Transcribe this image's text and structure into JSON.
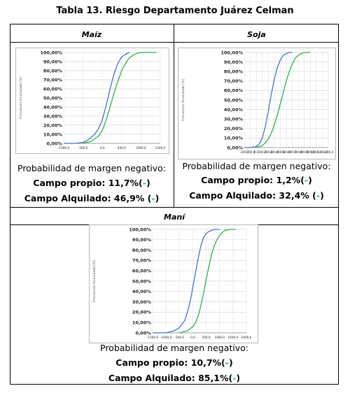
{
  "title": "Tabla 13. Riesgo Departamento Juárez Celman",
  "panels": {
    "maiz": {
      "header": "Maíz",
      "prob_label": "Probabilidad de margen negativo:",
      "propio": "Campo propio: 11,7%(",
      "alquilado": "Campo Alquilado: 46,9% (",
      "close": ")",
      "dash": "-"
    },
    "soja": {
      "header": "Soja",
      "prob_label": "Probabilidad de margen negativo:",
      "propio": "Campo propio: 1,2%(",
      "alquilado": "Campo Alquilado: 32,4% (",
      "close": ")",
      "dash": "-"
    },
    "mani": {
      "header": "Maní",
      "prob_label": "Probabilidad de margen negativo:",
      "propio": "Campo propio: 10,7%(",
      "alquilado": "Campo Alquilado: 85,1%(",
      "close": ")",
      "dash": "-"
    }
  },
  "chart_data": [
    {
      "type": "line",
      "name": "maiz",
      "ylabel": "Frecuencia Acumulada [%]",
      "yticks": [
        "0,00%",
        "10,00%",
        "20,00%",
        "30,00%",
        "40,00%",
        "50,00%",
        "60,00%",
        "70,00%",
        "80,00%",
        "90,00%",
        "100,00%"
      ],
      "xticks": [
        "-1000,0",
        "-500,0",
        "0,0",
        "500,0",
        "1000,0",
        "1500,0"
      ],
      "xlim": [
        -1000,
        1500
      ],
      "ylim": [
        0,
        100
      ],
      "series": [
        {
          "color": "#4472c4",
          "x": [
            -1000,
            -700,
            -500,
            -400,
            -300,
            -200,
            -100,
            0,
            100,
            200,
            300,
            400,
            500,
            600,
            700
          ],
          "y": [
            0,
            0,
            1,
            3,
            6,
            10,
            16,
            26,
            42,
            60,
            76,
            88,
            95,
            98,
            100
          ]
        },
        {
          "color": "#2db14a",
          "x": [
            -500,
            -300,
            -200,
            -100,
            0,
            100,
            200,
            300,
            400,
            500,
            600,
            700,
            800,
            900,
            1000,
            1100,
            1400
          ],
          "y": [
            0,
            2,
            5,
            8,
            14,
            26,
            40,
            55,
            68,
            80,
            88,
            94,
            97,
            99,
            100,
            100,
            100
          ]
        }
      ]
    },
    {
      "type": "line",
      "name": "soja",
      "ylabel": "Frecuencia Acumulada [%]",
      "yticks": [
        "0,00%",
        "10,00%",
        "20,00%",
        "30,00%",
        "40,00%",
        "50,00%",
        "60,00%",
        "70,00%",
        "80,00%",
        "90,00%",
        "100,00%"
      ],
      "xticks": [
        "-200,0",
        "-100,0",
        "0,0",
        "100,0",
        "200,0",
        "300,0",
        "400,0",
        "500,0",
        "600,0",
        "700,0",
        "800,0",
        "900,0",
        "1000,0",
        "1100,0",
        "1200,0"
      ],
      "xlim": [
        -200,
        1200
      ],
      "ylim": [
        0,
        100
      ],
      "series": [
        {
          "color": "#4472c4",
          "x": [
            -200,
            -100,
            0,
            50,
            100,
            150,
            200,
            250,
            300,
            350,
            400,
            450,
            500,
            550,
            600
          ],
          "y": [
            0,
            0,
            1,
            4,
            10,
            22,
            38,
            56,
            72,
            84,
            92,
            97,
            99,
            100,
            100
          ]
        },
        {
          "color": "#2db14a",
          "x": [
            0,
            100,
            150,
            200,
            250,
            300,
            350,
            400,
            450,
            500,
            550,
            600,
            650,
            700,
            750,
            800,
            900
          ],
          "y": [
            0,
            2,
            5,
            9,
            15,
            24,
            34,
            46,
            58,
            70,
            80,
            88,
            94,
            97,
            99,
            100,
            100
          ]
        }
      ]
    },
    {
      "type": "line",
      "name": "mani",
      "ylabel": "Frecuencia Acumulada [%]",
      "yticks": [
        "0,00%",
        "10,00%",
        "20,00%",
        "30,00%",
        "40,00%",
        "50,00%",
        "60,00%",
        "70,00%",
        "80,00%",
        "90,00%",
        "100,00%"
      ],
      "xticks": [
        "-1500,0",
        "-1000,0",
        "-500,0",
        "0,0",
        "500,0",
        "1000,0",
        "1500,0",
        "2000,0"
      ],
      "xlim": [
        -1500,
        2000
      ],
      "ylim": [
        0,
        100
      ],
      "series": [
        {
          "color": "#4472c4",
          "x": [
            -1500,
            -1000,
            -700,
            -500,
            -300,
            -200,
            -100,
            0,
            100,
            200,
            300,
            400,
            500,
            600,
            800,
            1000
          ],
          "y": [
            0,
            0,
            2,
            5,
            12,
            20,
            30,
            44,
            58,
            72,
            84,
            92,
            96,
            98,
            100,
            100
          ]
        },
        {
          "color": "#2db14a",
          "x": [
            -500,
            -200,
            0,
            100,
            200,
            300,
            400,
            500,
            600,
            700,
            800,
            900,
            1000,
            1100,
            1200,
            1400,
            1600
          ],
          "y": [
            0,
            2,
            6,
            10,
            16,
            26,
            38,
            52,
            64,
            76,
            84,
            90,
            94,
            97,
            99,
            100,
            100
          ]
        }
      ]
    }
  ]
}
